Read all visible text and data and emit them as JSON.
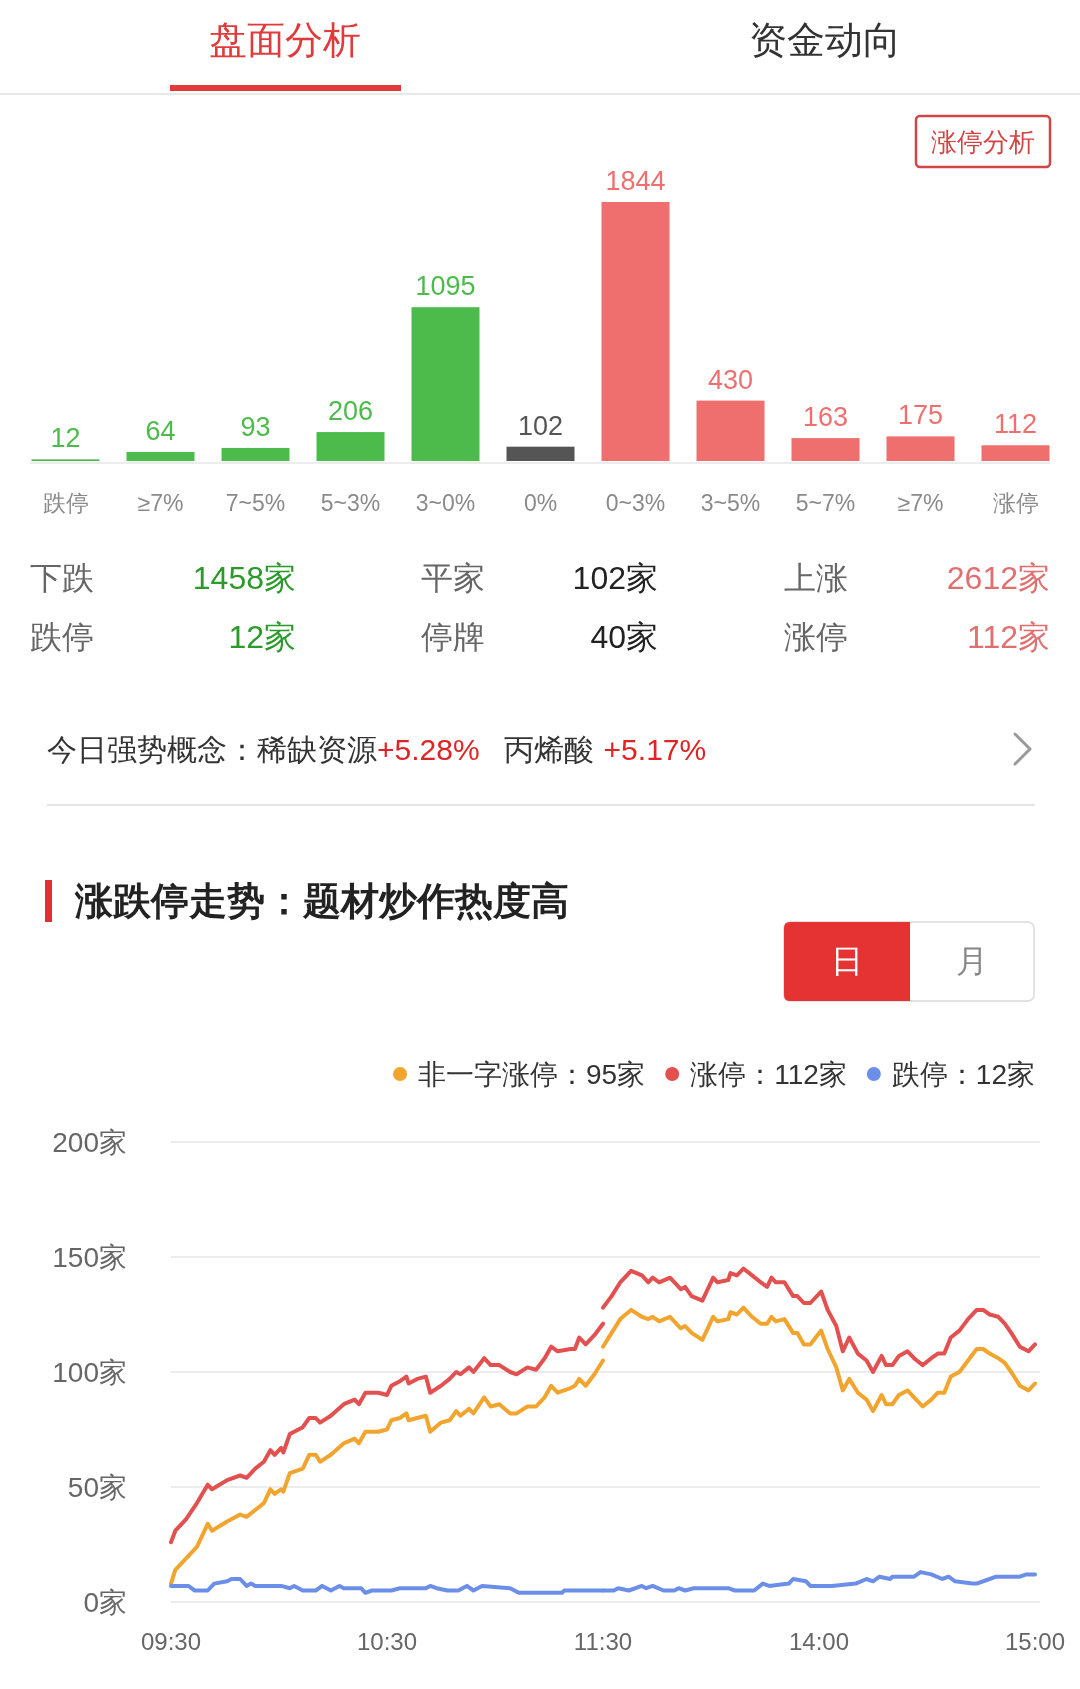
{
  "chart_data": [
    {
      "type": "bar",
      "categories": [
        "跌停",
        "≥7%",
        "7~5%",
        "5~3%",
        "3~0%",
        "0%",
        "0~3%",
        "3~5%",
        "5~7%",
        "≥7%",
        "涨停"
      ],
      "values": [
        12,
        64,
        93,
        206,
        1095,
        102,
        1844,
        430,
        163,
        175,
        112
      ],
      "colors": [
        "#4cbb4c",
        "#4cbb4c",
        "#4cbb4c",
        "#4cbb4c",
        "#4cbb4c",
        "#555555",
        "#ef6f6f",
        "#ef6f6f",
        "#ef6f6f",
        "#ef6f6f",
        "#ef6f6f"
      ],
      "data_labels": true,
      "annotations": [
        "盘面分析",
        "资金动向",
        "涨停分析"
      ]
    },
    {
      "type": "other",
      "annotations": [
        "下跌",
        "1458家",
        "平家",
        "102家",
        "上涨",
        "2612家",
        "跌停",
        "12家",
        "停牌",
        "40家",
        "涨停",
        "112家",
        "今日强势概念：稀缺资源",
        "+5.28%",
        "丙烯酸",
        "+5.17%"
      ]
    },
    {
      "type": "line",
      "title": "涨跌停走势：题材炒作热度高",
      "annotations": [
        "日",
        "月"
      ],
      "xlim": [
        9.5,
        11.5
      ],
      "xticks": [
        {
          "value": 9.5,
          "label": "09:30"
        },
        {
          "value": 10.5,
          "label": "10:30"
        },
        {
          "value": 11.5,
          "label": "11:30"
        }
      ],
      "ylim": [
        0,
        200
      ],
      "yticks": [
        {
          "value": 0,
          "label": "0家"
        },
        {
          "value": 50,
          "label": "50家"
        },
        {
          "value": 100,
          "label": "100家"
        },
        {
          "value": 150,
          "label": "150家"
        },
        {
          "value": 200,
          "label": "200家"
        }
      ],
      "grid": "y",
      "legend": "top right",
      "series": [
        {
          "name": "非一字涨停：95家",
          "color": "#f2a52e",
          "x": [
            9.5,
            9.52,
            9.57,
            9.62,
            9.67,
            9.69,
            9.76,
            9.82,
            9.85,
            9.89,
            9.93,
            9.96,
            9.98,
            10.01,
            10.02,
            10.05,
            10.11,
            10.14,
            10.17,
            10.19,
            10.24,
            10.3,
            10.35,
            10.37,
            10.4,
            10.46,
            10.5,
            10.52,
            10.56,
            10.59,
            10.6,
            10.64,
            10.68,
            10.7,
            10.75,
            10.79,
            10.82,
            10.84,
            10.88,
            10.9,
            10.95,
            10.98,
            11.02,
            11.07,
            11.1,
            11.15,
            11.19,
            11.23,
            11.26,
            11.29,
            11.35,
            11.37,
            11.39,
            11.42,
            11.46,
            11.5
          ],
          "values": [
            8,
            14,
            19,
            24,
            34,
            31,
            35,
            38,
            37,
            40,
            43,
            49,
            47,
            49,
            48,
            56,
            58,
            64,
            64,
            61,
            64,
            69,
            71,
            69,
            74,
            74,
            75,
            79,
            80,
            82,
            79,
            80,
            81,
            74,
            78,
            79,
            83,
            81,
            84,
            82,
            89,
            85,
            86,
            82,
            82,
            85,
            85,
            89,
            94,
            91,
            93,
            94,
            97,
            94,
            99,
            105
          ]
        },
        {
          "name": "涨停：112家",
          "color": "#e2514f",
          "x": [
            9.5,
            9.52,
            9.57,
            9.62,
            9.67,
            9.69,
            9.76,
            9.82,
            9.85,
            9.89,
            9.93,
            9.96,
            9.98,
            10.01,
            10.02,
            10.05,
            10.11,
            10.14,
            10.17,
            10.19,
            10.24,
            10.3,
            10.35,
            10.37,
            10.4,
            10.46,
            10.5,
            10.52,
            10.56,
            10.59,
            10.6,
            10.64,
            10.68,
            10.7,
            10.75,
            10.79,
            10.82,
            10.84,
            10.88,
            10.9,
            10.95,
            10.98,
            11.02,
            11.07,
            11.1,
            11.15,
            11.19,
            11.23,
            11.26,
            11.29,
            11.35,
            11.37,
            11.39,
            11.42,
            11.46,
            11.5
          ],
          "values": [
            26,
            31,
            36,
            43,
            51,
            49,
            53,
            55,
            54,
            58,
            61,
            66,
            64,
            67,
            65,
            73,
            76,
            80,
            80,
            78,
            81,
            86,
            88,
            86,
            91,
            91,
            90,
            94,
            96,
            98,
            95,
            97,
            98,
            91,
            94,
            97,
            100,
            99,
            102,
            100,
            106,
            103,
            103,
            100,
            99,
            102,
            101,
            106,
            111,
            109,
            110,
            110,
            115,
            112,
            116,
            121
          ]
        },
        {
          "name": "跌停：12家",
          "color": "#6b8fe8",
          "x": [
            9.5,
            9.58,
            9.61,
            9.67,
            9.7,
            9.76,
            9.78,
            9.82,
            9.85,
            9.87,
            9.89,
            10.01,
            10.05,
            10.07,
            10.11,
            10.17,
            10.2,
            10.24,
            10.28,
            10.3,
            10.38,
            10.4,
            10.43,
            10.52,
            10.56,
            10.68,
            10.7,
            10.73,
            10.78,
            10.83,
            10.87,
            10.9,
            10.94,
            11.07,
            11.11,
            11.31,
            11.32,
            11.5
          ],
          "values": [
            7,
            7,
            5,
            5,
            8,
            9,
            10,
            10,
            7,
            8,
            7,
            7,
            6,
            7,
            5,
            5,
            7,
            5,
            7,
            6,
            6,
            4,
            5,
            5,
            6,
            6,
            7,
            6,
            5,
            5,
            7,
            5,
            7,
            6,
            4,
            4,
            5,
            5
          ]
        }
      ]
    },
    {
      "type": "line",
      "xlim": [
        13,
        15
      ],
      "xticks": [
        {
          "value": 14,
          "label": "14:00"
        },
        {
          "value": 15,
          "label": "15:00"
        }
      ],
      "ylim": [
        0,
        200
      ],
      "yticks": [
        0,
        50,
        100,
        150,
        200
      ],
      "tick_labels": "x",
      "grid": "y",
      "series": [
        {
          "color": "#f2a52e",
          "x": [
            13,
            13.04,
            13.08,
            13.13,
            13.18,
            13.21,
            13.23,
            13.26,
            13.31,
            13.36,
            13.38,
            13.41,
            13.46,
            13.51,
            13.53,
            13.58,
            13.59,
            13.62,
            13.65,
            13.69,
            13.73,
            13.76,
            13.78,
            13.8,
            13.84,
            13.88,
            13.9,
            13.93,
            13.96,
            14.01,
            14.04,
            14.08,
            14.11,
            14.14,
            14.18,
            14.22,
            14.25,
            14.29,
            14.31,
            14.34,
            14.37,
            14.41,
            14.44,
            14.48,
            14.52,
            14.55,
            14.58,
            14.61,
            14.65,
            14.69,
            14.73,
            14.76,
            14.79,
            14.83,
            14.86,
            14.89,
            14.93,
            14.97,
            15
          ],
          "values": [
            111,
            117,
            123,
            127,
            124,
            123,
            124,
            122,
            124,
            119,
            120,
            117,
            114,
            124,
            122,
            123,
            126,
            125,
            128,
            124,
            121,
            121,
            124,
            122,
            123,
            117,
            117,
            112,
            112,
            118,
            110,
            102,
            92,
            97,
            91,
            88,
            83,
            90,
            86,
            86,
            90,
            92,
            89,
            85,
            88,
            91,
            91,
            98,
            100,
            105,
            110,
            110,
            108,
            106,
            104,
            100,
            94,
            92,
            95
          ]
        },
        {
          "color": "#e2514f",
          "x": [
            13,
            13.04,
            13.08,
            13.13,
            13.18,
            13.21,
            13.23,
            13.26,
            13.31,
            13.36,
            13.38,
            13.41,
            13.46,
            13.51,
            13.53,
            13.58,
            13.59,
            13.62,
            13.65,
            13.69,
            13.73,
            13.76,
            13.78,
            13.8,
            13.84,
            13.88,
            13.9,
            13.93,
            13.96,
            14.01,
            14.04,
            14.08,
            14.11,
            14.14,
            14.18,
            14.22,
            14.25,
            14.29,
            14.31,
            14.34,
            14.37,
            14.41,
            14.44,
            14.48,
            14.52,
            14.55,
            14.58,
            14.61,
            14.65,
            14.69,
            14.73,
            14.76,
            14.79,
            14.83,
            14.86,
            14.89,
            14.93,
            14.97,
            15
          ],
          "values": [
            128,
            133,
            139,
            144,
            142,
            139,
            141,
            139,
            141,
            136,
            137,
            133,
            131,
            141,
            139,
            140,
            143,
            142,
            145,
            142,
            139,
            137,
            141,
            139,
            139,
            133,
            133,
            130,
            130,
            135,
            127,
            120,
            109,
            115,
            108,
            105,
            100,
            107,
            103,
            103,
            107,
            109,
            106,
            103,
            106,
            108,
            108,
            115,
            118,
            123,
            127,
            127,
            125,
            124,
            121,
            117,
            111,
            109,
            112
          ]
        },
        {
          "color": "#6b8fe8",
          "x": [
            13,
            13.05,
            13.07,
            13.12,
            13.18,
            13.2,
            13.23,
            13.28,
            13.33,
            13.35,
            13.38,
            13.42,
            13.58,
            13.61,
            13.66,
            13.7,
            13.74,
            13.77,
            13.86,
            13.88,
            13.94,
            13.96,
            14.06,
            14.17,
            14.22,
            14.25,
            14.28,
            14.33,
            14.34,
            14.44,
            14.47,
            14.52,
            14.57,
            14.6,
            14.63,
            14.71,
            14.73,
            14.79,
            14.82,
            14.93,
            14.96,
            15
          ],
          "values": [
            5,
            5,
            6,
            5,
            7,
            6,
            7,
            5,
            5,
            6,
            5,
            6,
            6,
            5,
            5,
            5,
            8,
            7,
            8,
            10,
            9,
            7,
            7,
            8,
            10,
            9,
            11,
            10,
            11,
            11,
            13,
            12,
            10,
            11,
            9,
            8,
            8,
            10,
            11,
            11,
            12,
            12
          ]
        }
      ]
    }
  ]
}
